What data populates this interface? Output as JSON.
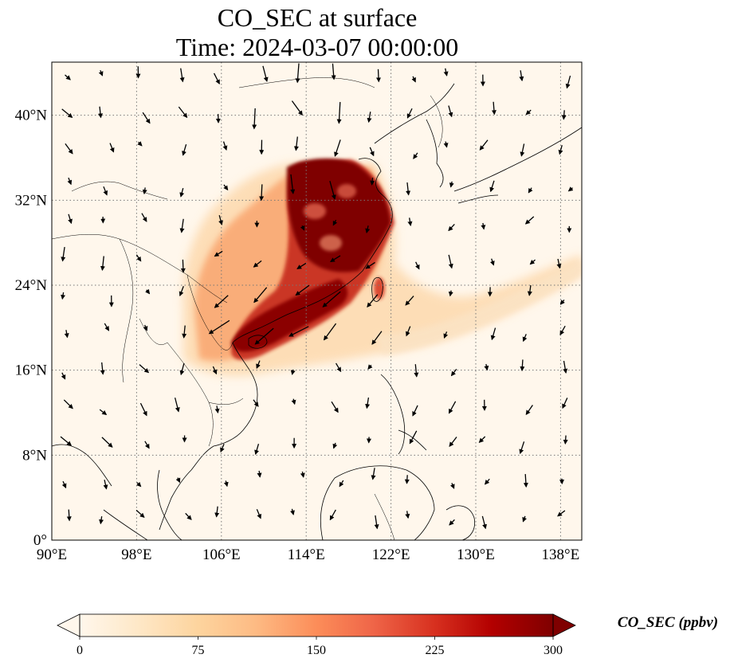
{
  "title": {
    "line1": "CO_SEC at surface",
    "line2": "Time: 2024-03-07 00:00:00"
  },
  "axes": {
    "x_ticks": [
      {
        "value": 90,
        "label": "90°E"
      },
      {
        "value": 98,
        "label": "98°E"
      },
      {
        "value": 106,
        "label": "106°E"
      },
      {
        "value": 114,
        "label": "114°E"
      },
      {
        "value": 122,
        "label": "122°E"
      },
      {
        "value": 130,
        "label": "130°E"
      },
      {
        "value": 138,
        "label": "138°E"
      }
    ],
    "y_ticks": [
      {
        "value": 0,
        "label": "0°"
      },
      {
        "value": 8,
        "label": "8°N"
      },
      {
        "value": 16,
        "label": "16°N"
      },
      {
        "value": 24,
        "label": "24°N"
      },
      {
        "value": 32,
        "label": "32°N"
      },
      {
        "value": 40,
        "label": "40°N"
      }
    ],
    "lon_range": [
      90,
      140
    ],
    "lat_range": [
      0,
      45
    ],
    "gridlines": "dotted"
  },
  "colorbar": {
    "label": "CO_SEC (ppbv)",
    "ticks": [
      {
        "value": 0,
        "label": "0"
      },
      {
        "value": 75,
        "label": "75"
      },
      {
        "value": 150,
        "label": "150"
      },
      {
        "value": 225,
        "label": "225"
      },
      {
        "value": 300,
        "label": "300"
      }
    ],
    "range": [
      0,
      300
    ],
    "extend": "both",
    "colormap": "OrRd",
    "colors": [
      "#fff7ec",
      "#fee8c8",
      "#fdd49e",
      "#fdbb84",
      "#fc8d59",
      "#ef6548",
      "#d7301f",
      "#b30000",
      "#7f0000"
    ]
  },
  "colors": {
    "background": "#fff7ec",
    "low": "#fdd49e",
    "mid": "#ef6548",
    "high": "#7f0000"
  }
}
